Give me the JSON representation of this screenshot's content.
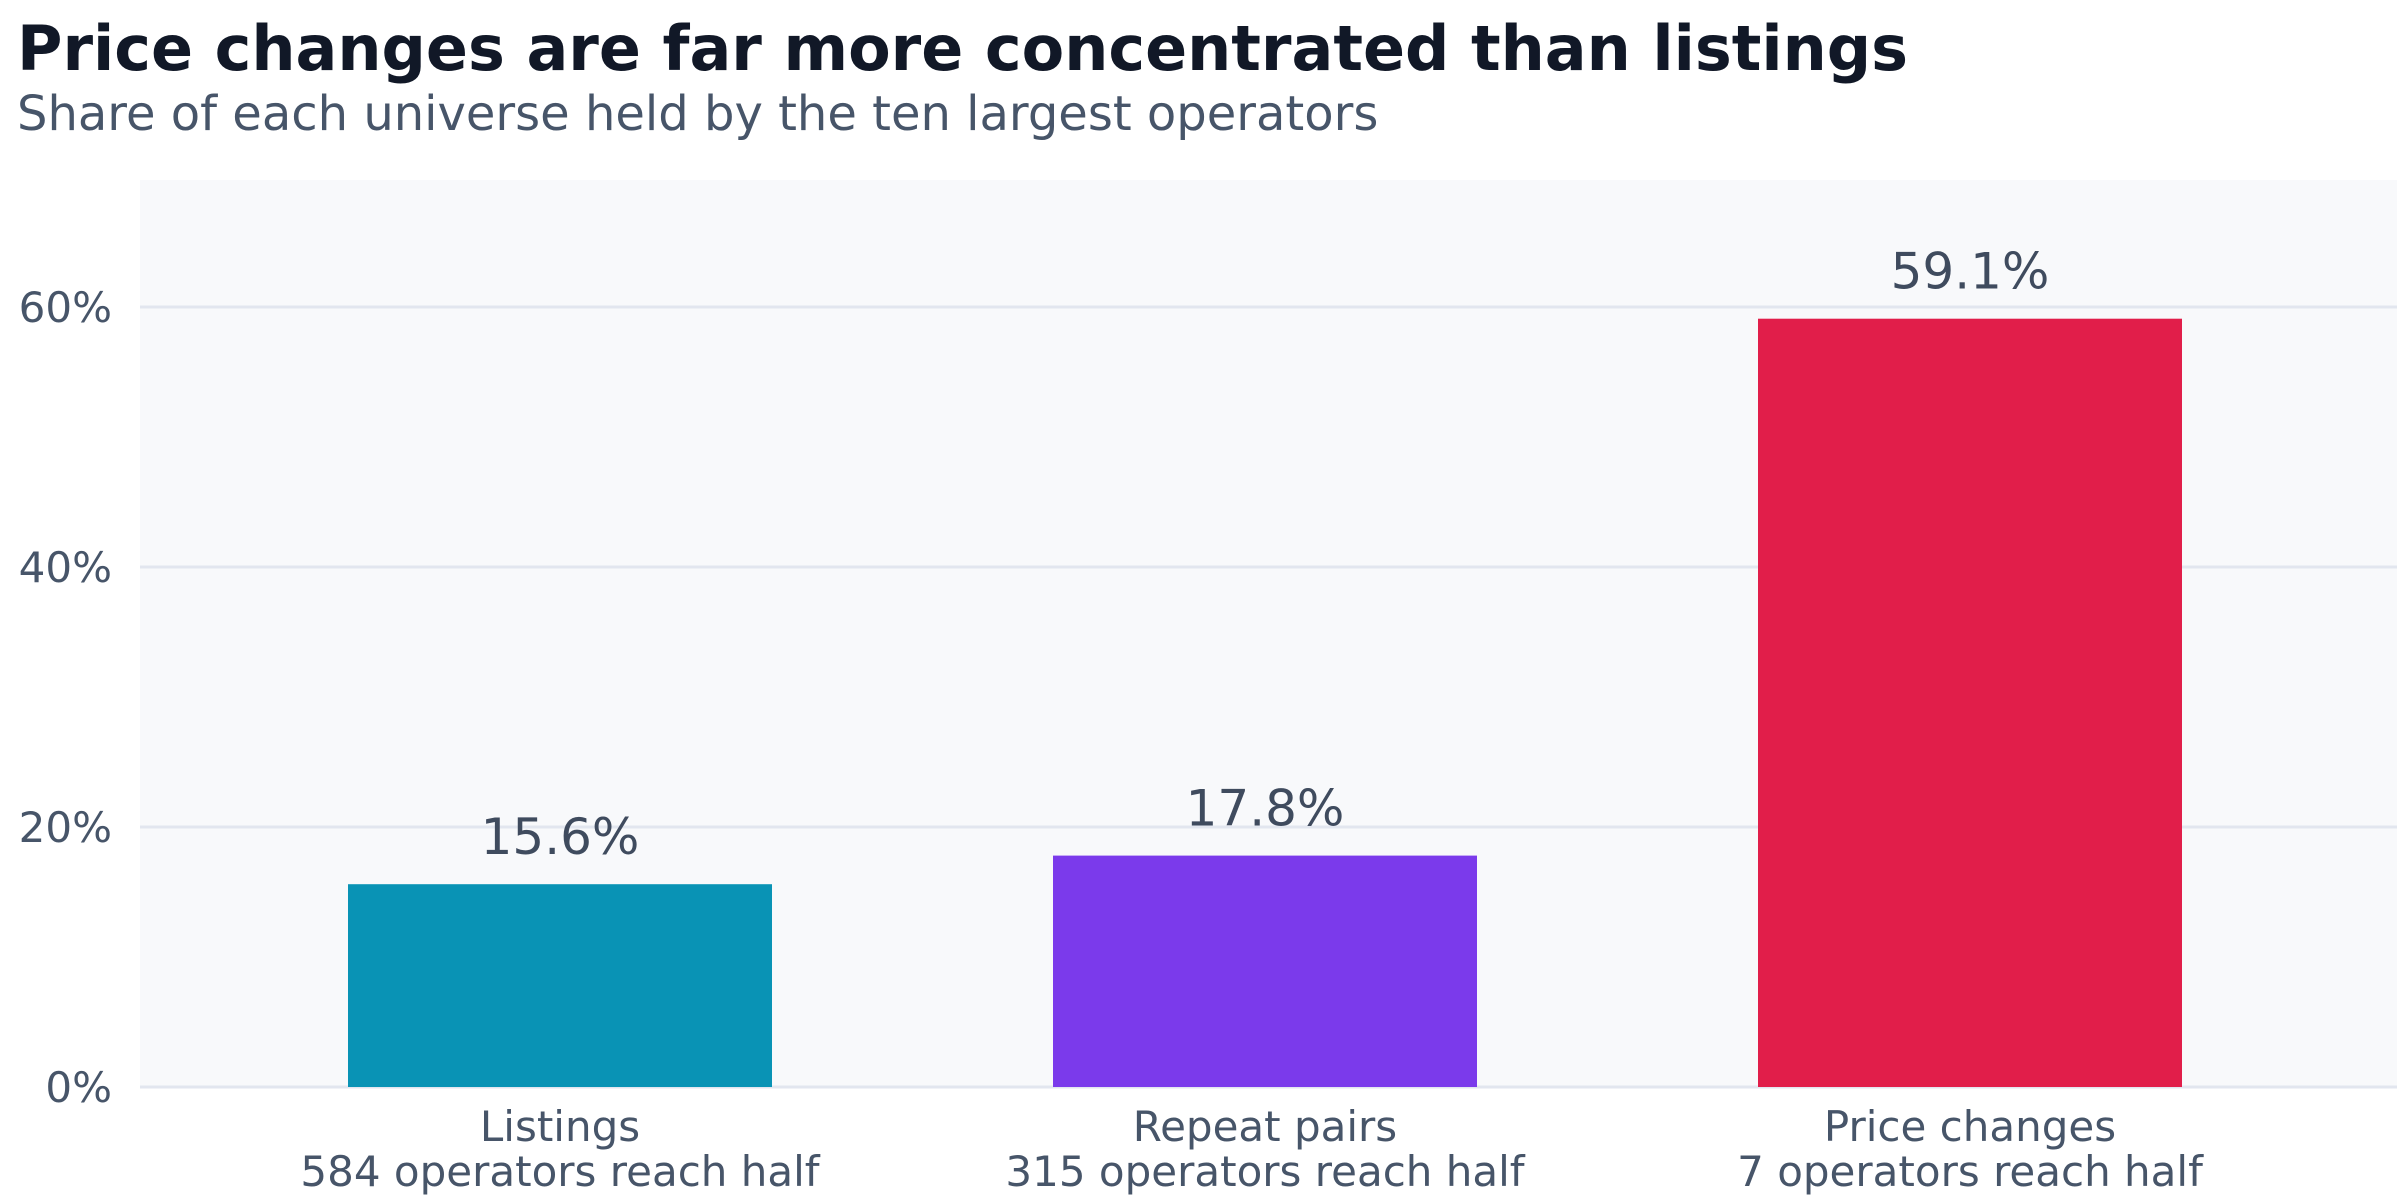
{
  "chart_data": {
    "type": "bar",
    "title": "Price changes are far more concentrated than listings",
    "subtitle": "Share of each universe held by the ten largest operators",
    "categories": [
      "Listings",
      "Repeat pairs",
      "Price changes"
    ],
    "category_sublabels": [
      "584 operators reach half",
      "315 operators reach half",
      "7 operators reach half"
    ],
    "values": [
      15.6,
      17.8,
      59.1
    ],
    "value_labels": [
      "15.6%",
      "17.8%",
      "59.1%"
    ],
    "colors": [
      "#0993b5",
      "#7b3aeb",
      "#e11e4a"
    ],
    "ylim": [
      0,
      70
    ],
    "yticks": [
      0,
      20,
      40,
      60
    ],
    "ytick_labels": [
      "0%",
      "20%",
      "40%",
      "60%"
    ],
    "xlabel": "",
    "ylabel": "",
    "grid": true,
    "legend": "none",
    "plot_background": "#f8f9fb",
    "gridline_color": "#e2e6ef"
  }
}
